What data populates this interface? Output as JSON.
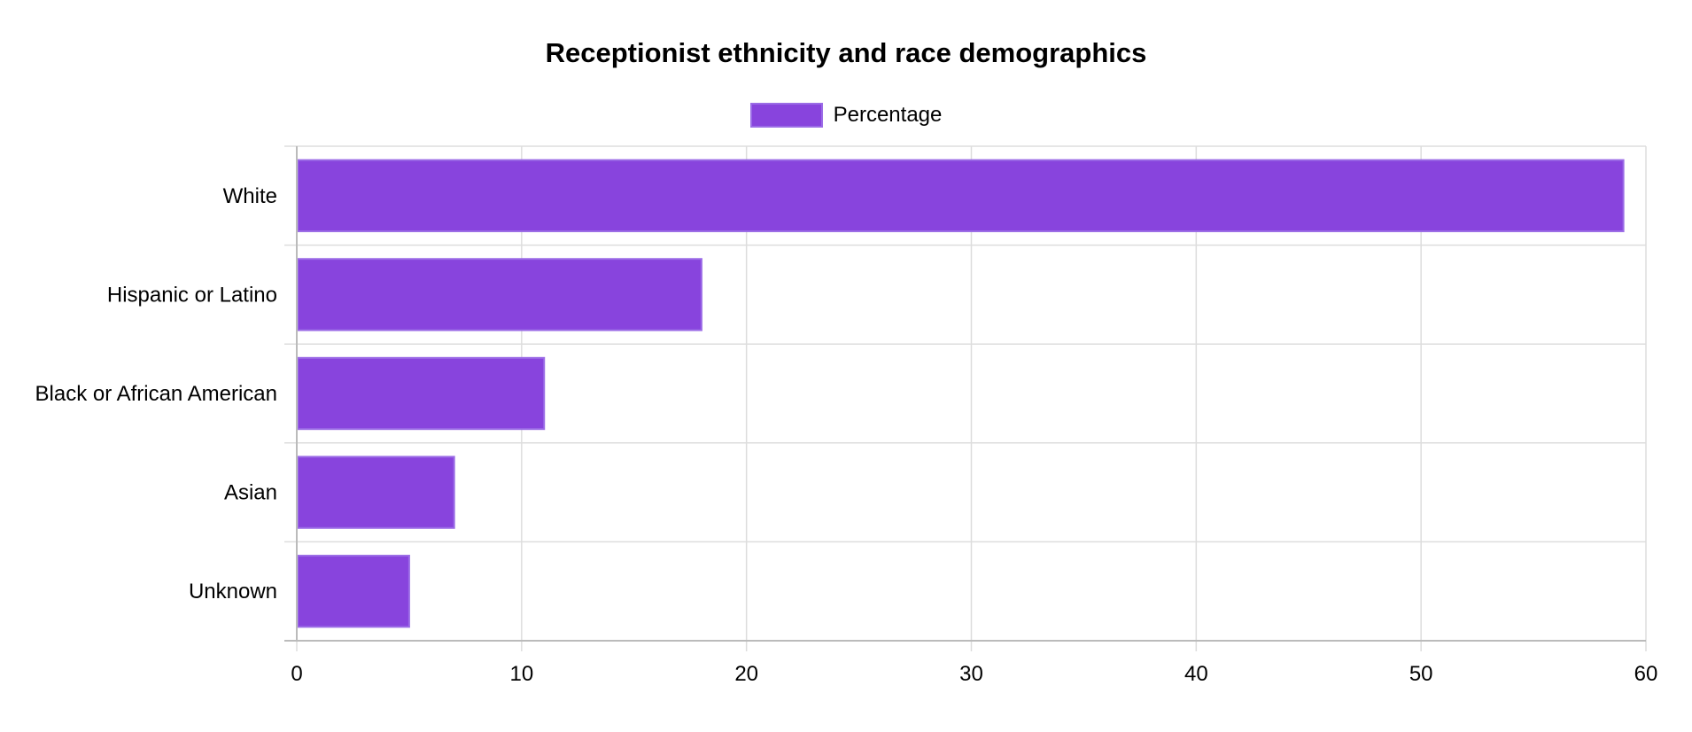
{
  "chart_data": {
    "type": "bar",
    "orientation": "horizontal",
    "title": "Receptionist ethnicity and race demographics",
    "categories": [
      "White",
      "Hispanic or Latino",
      "Black or African American",
      "Asian",
      "Unknown"
    ],
    "series": [
      {
        "name": "Percentage",
        "values": [
          59,
          18,
          11,
          7,
          5
        ]
      }
    ],
    "xlim": [
      0,
      60
    ],
    "x_ticks": [
      "0",
      "10",
      "20",
      "30",
      "40",
      "50",
      "60"
    ],
    "xlabel": "",
    "ylabel": "",
    "grid": true,
    "legend_position": "top-center",
    "colors": {
      "bar_fill": "#8844dd",
      "bar_border": "#9b6ce6",
      "grid": "#dddddd",
      "axis": "#bbbbbb"
    }
  }
}
